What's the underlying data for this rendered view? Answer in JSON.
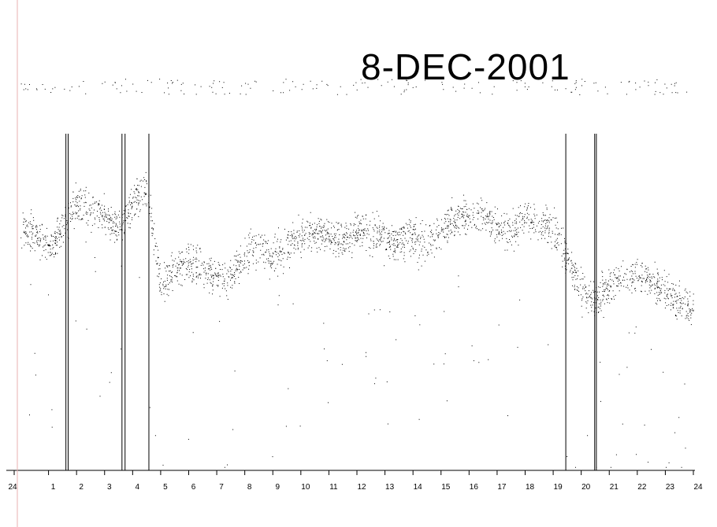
{
  "chart_data": {
    "type": "scatter",
    "title": "8-DEC-2001",
    "xlabel": "",
    "ylabel": "",
    "xlim": [
      0,
      24
    ],
    "ylim": [
      0,
      1
    ],
    "x_tick_labels": [
      "24",
      "1",
      "2",
      "3",
      "4",
      "5",
      "6",
      "7",
      "8",
      "9",
      "10",
      "11",
      "12",
      "13",
      "14",
      "15",
      "16",
      "17",
      "18",
      "19",
      "20",
      "21",
      "22",
      "23",
      "24"
    ],
    "grid": false,
    "legend": "none",
    "point_color": "#000000",
    "gaps": [
      1.62,
      1.7,
      3.62,
      3.73,
      4.58,
      19.45,
      20.48,
      20.54
    ],
    "profile": [
      {
        "x": 0.0,
        "y": 0.72
      },
      {
        "x": 0.5,
        "y": 0.7
      },
      {
        "x": 1.0,
        "y": 0.66
      },
      {
        "x": 1.5,
        "y": 0.72
      },
      {
        "x": 2.0,
        "y": 0.79
      },
      {
        "x": 2.5,
        "y": 0.78
      },
      {
        "x": 3.0,
        "y": 0.75
      },
      {
        "x": 3.5,
        "y": 0.72
      },
      {
        "x": 4.0,
        "y": 0.8
      },
      {
        "x": 4.5,
        "y": 0.84
      },
      {
        "x": 5.0,
        "y": 0.55
      },
      {
        "x": 5.5,
        "y": 0.6
      },
      {
        "x": 6.0,
        "y": 0.62
      },
      {
        "x": 6.5,
        "y": 0.6
      },
      {
        "x": 7.0,
        "y": 0.57
      },
      {
        "x": 7.5,
        "y": 0.58
      },
      {
        "x": 8.0,
        "y": 0.63
      },
      {
        "x": 8.5,
        "y": 0.68
      },
      {
        "x": 9.0,
        "y": 0.63
      },
      {
        "x": 9.5,
        "y": 0.67
      },
      {
        "x": 10.0,
        "y": 0.7
      },
      {
        "x": 10.5,
        "y": 0.71
      },
      {
        "x": 11.0,
        "y": 0.7
      },
      {
        "x": 11.5,
        "y": 0.68
      },
      {
        "x": 12.0,
        "y": 0.71
      },
      {
        "x": 12.5,
        "y": 0.7
      },
      {
        "x": 13.0,
        "y": 0.69
      },
      {
        "x": 13.5,
        "y": 0.68
      },
      {
        "x": 14.0,
        "y": 0.7
      },
      {
        "x": 14.5,
        "y": 0.67
      },
      {
        "x": 15.0,
        "y": 0.72
      },
      {
        "x": 15.5,
        "y": 0.74
      },
      {
        "x": 16.0,
        "y": 0.76
      },
      {
        "x": 16.5,
        "y": 0.75
      },
      {
        "x": 17.0,
        "y": 0.72
      },
      {
        "x": 17.5,
        "y": 0.71
      },
      {
        "x": 18.0,
        "y": 0.75
      },
      {
        "x": 18.5,
        "y": 0.74
      },
      {
        "x": 19.0,
        "y": 0.73
      },
      {
        "x": 19.5,
        "y": 0.62
      },
      {
        "x": 20.0,
        "y": 0.55
      },
      {
        "x": 20.5,
        "y": 0.5
      },
      {
        "x": 21.0,
        "y": 0.55
      },
      {
        "x": 21.5,
        "y": 0.58
      },
      {
        "x": 22.0,
        "y": 0.58
      },
      {
        "x": 22.5,
        "y": 0.57
      },
      {
        "x": 23.0,
        "y": 0.53
      },
      {
        "x": 23.5,
        "y": 0.5
      },
      {
        "x": 24.0,
        "y": 0.48
      }
    ]
  }
}
